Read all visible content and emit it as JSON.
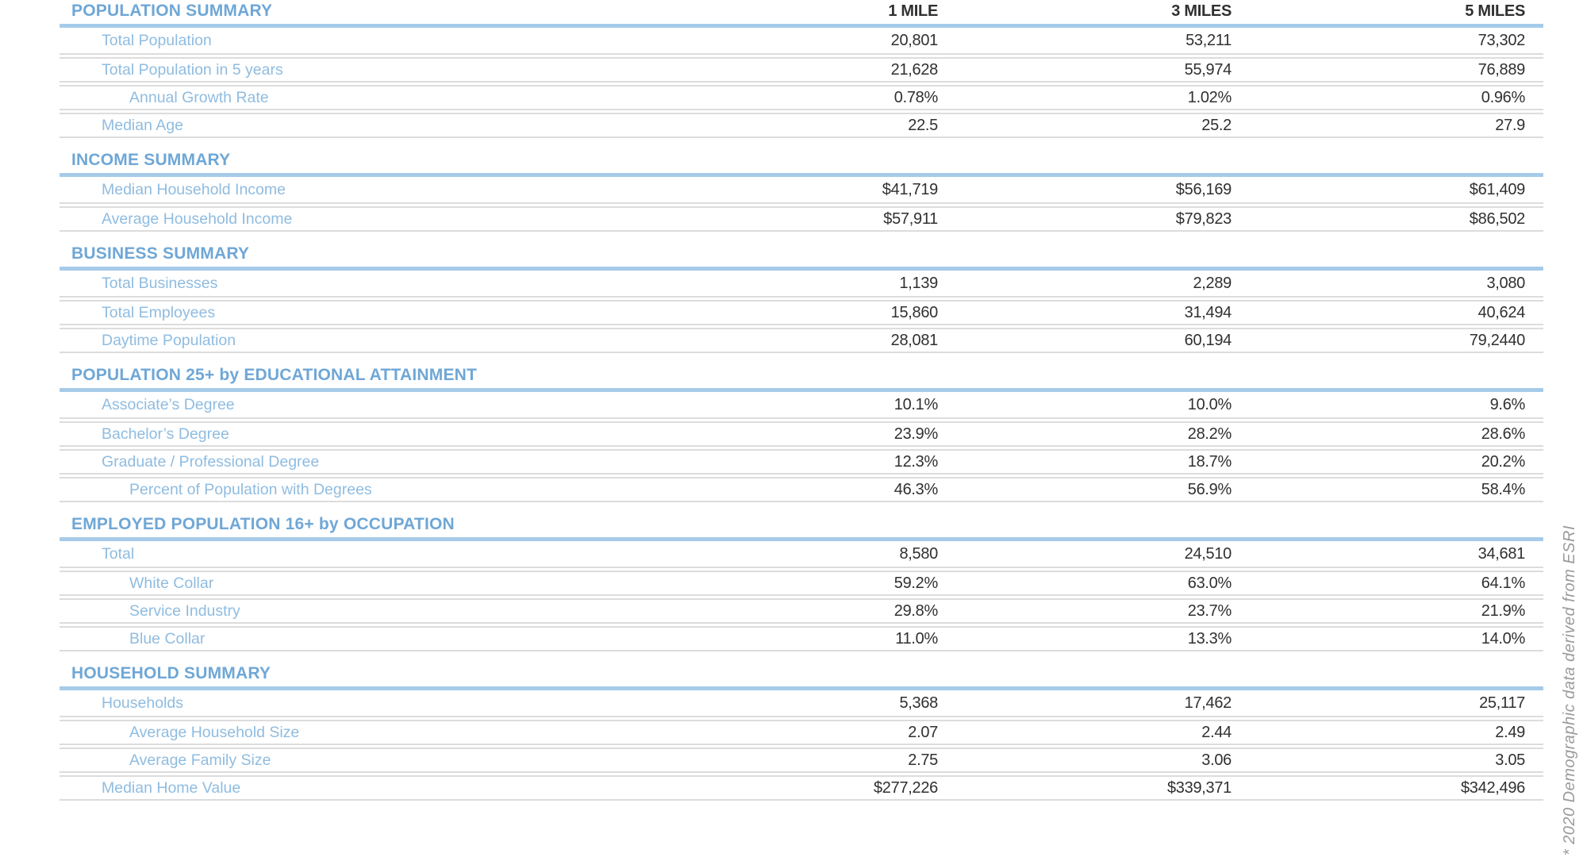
{
  "columns": [
    "1 MILE",
    "3 MILES",
    "5 MILES"
  ],
  "sections": [
    {
      "title": "POPULATION SUMMARY",
      "rows": [
        {
          "label": "Total Population",
          "indent": 1,
          "values": [
            "20,801",
            "53,211",
            "73,302"
          ]
        },
        {
          "label": "Total Population in 5 years",
          "indent": 1,
          "values": [
            "21,628",
            "55,974",
            "76,889"
          ]
        },
        {
          "label": "Annual Growth Rate",
          "indent": 2,
          "values": [
            "0.78%",
            "1.02%",
            "0.96%"
          ]
        },
        {
          "label": "Median Age",
          "indent": 1,
          "values": [
            "22.5",
            "25.2",
            "27.9"
          ]
        }
      ]
    },
    {
      "title": "INCOME SUMMARY",
      "rows": [
        {
          "label": "Median Household Income",
          "indent": 1,
          "values": [
            "$41,719",
            "$56,169",
            "$61,409"
          ]
        },
        {
          "label": "Average Household Income",
          "indent": 1,
          "values": [
            "$57,911",
            "$79,823",
            "$86,502"
          ]
        }
      ]
    },
    {
      "title": "BUSINESS SUMMARY",
      "rows": [
        {
          "label": "Total Businesses",
          "indent": 1,
          "values": [
            "1,139",
            "2,289",
            "3,080"
          ]
        },
        {
          "label": "Total Employees",
          "indent": 1,
          "values": [
            "15,860",
            "31,494",
            "40,624"
          ]
        },
        {
          "label": "Daytime Population",
          "indent": 1,
          "values": [
            "28,081",
            "60,194",
            "79,2440"
          ]
        }
      ]
    },
    {
      "title": "POPULATION 25+ by EDUCATIONAL ATTAINMENT",
      "rows": [
        {
          "label": "Associate’s Degree",
          "indent": 1,
          "values": [
            "10.1%",
            "10.0%",
            "9.6%"
          ]
        },
        {
          "label": "Bachelor’s Degree",
          "indent": 1,
          "values": [
            "23.9%",
            "28.2%",
            "28.6%"
          ]
        },
        {
          "label": "Graduate / Professional Degree",
          "indent": 1,
          "values": [
            "12.3%",
            "18.7%",
            "20.2%"
          ]
        },
        {
          "label": "Percent of Population with Degrees",
          "indent": 2,
          "values": [
            "46.3%",
            "56.9%",
            "58.4%"
          ]
        }
      ]
    },
    {
      "title": "EMPLOYED POPULATION 16+ by OCCUPATION",
      "rows": [
        {
          "label": "Total",
          "indent": 1,
          "values": [
            "8,580",
            "24,510",
            "34,681"
          ]
        },
        {
          "label": "White Collar",
          "indent": 2,
          "values": [
            "59.2%",
            "63.0%",
            "64.1%"
          ]
        },
        {
          "label": "Service Industry",
          "indent": 2,
          "values": [
            "29.8%",
            "23.7%",
            "21.9%"
          ]
        },
        {
          "label": "Blue Collar",
          "indent": 2,
          "values": [
            "11.0%",
            "13.3%",
            "14.0%"
          ]
        }
      ]
    },
    {
      "title": "HOUSEHOLD SUMMARY",
      "rows": [
        {
          "label": "Households",
          "indent": 1,
          "values": [
            "5,368",
            "17,462",
            "25,117"
          ]
        },
        {
          "label": "Average Household Size",
          "indent": 2,
          "values": [
            "2.07",
            "2.44",
            "2.49"
          ]
        },
        {
          "label": "Average Family Size",
          "indent": 2,
          "values": [
            "2.75",
            "3.06",
            "3.05"
          ]
        },
        {
          "label": "Median Home Value",
          "indent": 1,
          "values": [
            "$277,226",
            "$339,371",
            "$342,496"
          ]
        }
      ]
    }
  ],
  "footnote": "* 2020 Demographic data derived from ESRI",
  "colors": {
    "section_title_blue": "#6FA7D6",
    "column_header_blue": "#87B6DD",
    "row_label_blue": "#8FBCE0",
    "section_divider_blue": "#A6CBE9",
    "row_divider_gray": "#DCDCDC",
    "value_text": "#303030",
    "footnote_gray": "#9B9B9B",
    "background": "#FFFFFF"
  }
}
